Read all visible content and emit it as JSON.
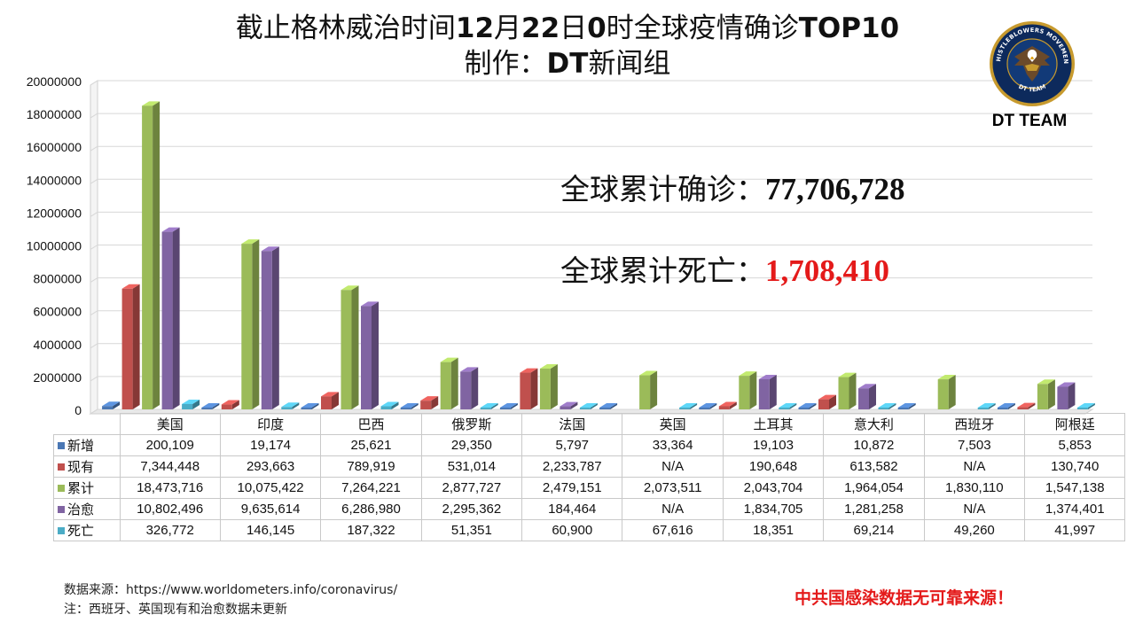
{
  "title": {
    "line1_a": "截止格林威治时间",
    "line1_b": "12",
    "line1_c": "月",
    "line1_d": "22",
    "line1_e": "日",
    "line1_f": "0",
    "line1_g": "时全球疫情确诊",
    "line1_h": "TOP10",
    "line2_a": "制作：",
    "line2_b": "DT",
    "line2_c": "新闻组"
  },
  "logo": {
    "label": "DT TEAM",
    "ring_top": "WHISTLEBLOWERS MOVEMENT",
    "ring_bottom": "DT TEAM"
  },
  "stats": {
    "confirmed_label": "全球累计确诊：",
    "confirmed_value": "77,706,728",
    "deaths_label": "全球累计死亡：",
    "deaths_value": "1,708,410"
  },
  "footer": {
    "source": "数据来源：https://www.worldometers.info/coronavirus/",
    "note": "注：西班牙、英国现有和治愈数据未更新",
    "warning": "中共国感染数据无可靠来源！"
  },
  "colors": {
    "新增": "#4a77b4",
    "现有": "#c0504d",
    "累计": "#9bbb59",
    "治愈": "#8064a2",
    "死亡": "#4bacc6"
  },
  "chart_data": {
    "type": "bar",
    "style": "3d-clustered-column-with-data-table",
    "categories": [
      "美国",
      "印度",
      "巴西",
      "俄罗斯",
      "法国",
      "英国",
      "土耳其",
      "意大利",
      "西班牙",
      "阿根廷"
    ],
    "ylim": [
      0,
      20000000
    ],
    "yticks": [
      0,
      2000000,
      4000000,
      6000000,
      8000000,
      10000000,
      12000000,
      14000000,
      16000000,
      18000000,
      20000000
    ],
    "ytick_labels": [
      "0",
      "2000000",
      "4000000",
      "6000000",
      "8000000",
      "10000000",
      "12000000",
      "14000000",
      "16000000",
      "18000000",
      "20000000"
    ],
    "grid": true,
    "series": [
      {
        "name": "新增",
        "values": [
          200109,
          19174,
          25621,
          29350,
          5797,
          33364,
          19103,
          10872,
          7503,
          5853
        ],
        "labels": [
          "200,109",
          "19,174",
          "25,621",
          "29,350",
          "5,797",
          "33,364",
          "19,103",
          "10,872",
          "7,503",
          "5,853"
        ]
      },
      {
        "name": "现有",
        "values": [
          7344448,
          293663,
          789919,
          531014,
          2233787,
          null,
          190648,
          613582,
          null,
          130740
        ],
        "labels": [
          "7,344,448",
          "293,663",
          "789,919",
          "531,014",
          "2,233,787",
          "N/A",
          "190,648",
          "613,582",
          "N/A",
          "130,740"
        ]
      },
      {
        "name": "累计",
        "values": [
          18473716,
          10075422,
          7264221,
          2877727,
          2479151,
          2073511,
          2043704,
          1964054,
          1830110,
          1547138
        ],
        "labels": [
          "18,473,716",
          "10,075,422",
          "7,264,221",
          "2,877,727",
          "2,479,151",
          "2,073,511",
          "2,043,704",
          "1,964,054",
          "1,830,110",
          "1,547,138"
        ]
      },
      {
        "name": "治愈",
        "values": [
          10802496,
          9635614,
          6286980,
          2295362,
          184464,
          null,
          1834705,
          1281258,
          null,
          1374401
        ],
        "labels": [
          "10,802,496",
          "9,635,614",
          "6,286,980",
          "2,295,362",
          "184,464",
          "N/A",
          "1,834,705",
          "1,281,258",
          "N/A",
          "1,374,401"
        ]
      },
      {
        "name": "死亡",
        "values": [
          326772,
          146145,
          187322,
          51351,
          60900,
          67616,
          18351,
          69214,
          49260,
          41997
        ],
        "labels": [
          "326,772",
          "146,145",
          "187,322",
          "51,351",
          "60,900",
          "67,616",
          "18,351",
          "69,214",
          "49,260",
          "41,997"
        ]
      }
    ]
  }
}
